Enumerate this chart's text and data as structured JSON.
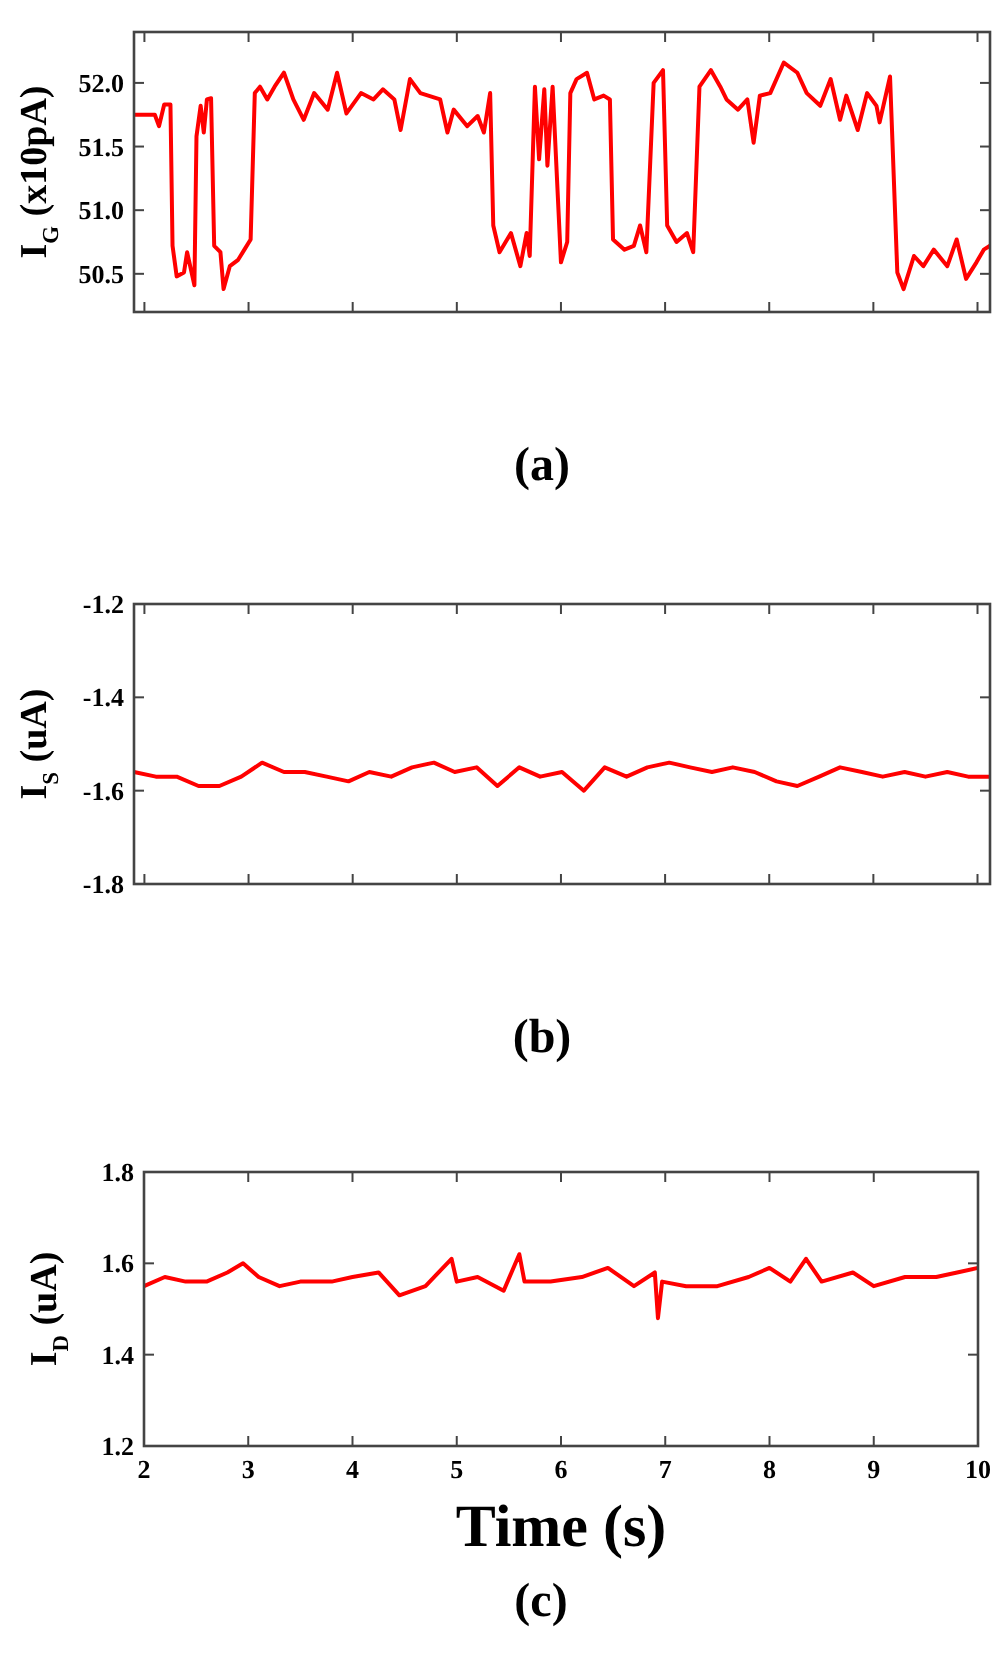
{
  "chart_data": [
    {
      "type": "line",
      "ylabel": "I$_{G}$ (x10pA)",
      "annotations": [
        "(a)"
      ],
      "xlim": [
        1.9,
        10.12
      ],
      "xticks": [
        2,
        3,
        4,
        5,
        6,
        7,
        8,
        9,
        10
      ],
      "ylim": [
        50.2,
        52.4
      ],
      "yticks": [
        {
          "value": 50.5,
          "label": "50.5"
        },
        {
          "value": 51,
          "label": "51.0"
        },
        {
          "value": 51.5,
          "label": "51.5"
        },
        {
          "value": 52,
          "label": "52.0"
        }
      ],
      "tick_labels": "y",
      "marker": "none",
      "line_style": "solid",
      "series": [
        {
          "color": "#ff0000",
          "x": [
            1.9,
            2.1,
            2.14,
            2.19,
            2.25,
            2.27,
            2.31,
            2.38,
            2.41,
            2.48,
            2.5,
            2.54,
            2.57,
            2.6,
            2.64,
            2.67,
            2.73,
            2.76,
            2.82,
            2.9,
            2.96,
            3.02,
            3.06,
            3.11,
            3.18,
            3.25,
            3.34,
            3.43,
            3.53,
            3.63,
            3.76,
            3.85,
            3.94,
            4.08,
            4.2,
            4.29,
            4.4,
            4.46,
            4.55,
            4.65,
            4.84,
            4.91,
            4.97,
            5.1,
            5.2,
            5.26,
            5.32,
            5.35,
            5.41,
            5.52,
            5.61,
            5.67,
            5.7,
            5.75,
            5.79,
            5.84,
            5.87,
            5.92,
            6.0,
            6.06,
            6.09,
            6.15,
            6.25,
            6.32,
            6.41,
            6.47,
            6.5,
            6.61,
            6.7,
            6.76,
            6.82,
            6.89,
            6.98,
            7.02,
            7.11,
            7.21,
            7.27,
            7.33,
            7.44,
            7.53,
            7.59,
            7.7,
            7.79,
            7.85,
            7.91,
            8.01,
            8.14,
            8.27,
            8.36,
            8.49,
            8.59,
            8.68,
            8.74,
            8.85,
            8.94,
            9.03,
            9.06,
            9.16,
            9.23,
            9.29,
            9.39,
            9.48,
            9.58,
            9.71,
            9.8,
            9.89,
            9.99,
            10.06,
            10.12
          ],
          "values": [
            51.75,
            51.75,
            51.66,
            51.83,
            51.83,
            50.72,
            50.48,
            50.51,
            50.67,
            50.41,
            51.58,
            51.82,
            51.61,
            51.87,
            51.88,
            50.72,
            50.67,
            50.38,
            50.56,
            50.61,
            50.69,
            50.77,
            51.92,
            51.97,
            51.87,
            51.97,
            52.08,
            51.87,
            51.71,
            51.92,
            51.79,
            52.08,
            51.76,
            51.92,
            51.87,
            51.95,
            51.87,
            51.63,
            52.03,
            51.92,
            51.87,
            51.61,
            51.79,
            51.66,
            51.74,
            51.61,
            51.92,
            50.88,
            50.67,
            50.82,
            50.56,
            50.82,
            50.64,
            51.97,
            51.4,
            51.95,
            51.35,
            51.97,
            50.59,
            50.75,
            51.92,
            52.03,
            52.08,
            51.87,
            51.9,
            51.87,
            50.77,
            50.69,
            50.72,
            50.88,
            50.67,
            52.0,
            52.1,
            50.88,
            50.75,
            50.82,
            50.67,
            51.97,
            52.1,
            51.97,
            51.87,
            51.79,
            51.87,
            51.53,
            51.9,
            51.92,
            52.16,
            52.08,
            51.92,
            51.82,
            52.03,
            51.71,
            51.9,
            51.63,
            51.92,
            51.82,
            51.69,
            52.05,
            50.51,
            50.38,
            50.64,
            50.56,
            50.69,
            50.56,
            50.77,
            50.46,
            50.59,
            50.69,
            50.72
          ]
        }
      ]
    },
    {
      "type": "line",
      "ylabel": "I$_{S}$ (uA)",
      "annotations": [
        "(b)"
      ],
      "xlim": [
        1.9,
        10.12
      ],
      "xticks": [
        2,
        3,
        4,
        5,
        6,
        7,
        8,
        9,
        10
      ],
      "ylim": [
        -1.8,
        -1.2
      ],
      "yticks": [
        -1.8,
        -1.6,
        -1.4,
        -1.2
      ],
      "tick_labels": "y",
      "marker": "none",
      "line_style": "solid",
      "series": [
        {
          "color": "#ff0000",
          "x": [
            1.9,
            2.11,
            2.31,
            2.52,
            2.72,
            2.93,
            3.13,
            3.34,
            3.54,
            3.75,
            3.96,
            4.16,
            4.37,
            4.57,
            4.78,
            4.98,
            5.19,
            5.39,
            5.6,
            5.8,
            6.01,
            6.22,
            6.42,
            6.63,
            6.83,
            7.04,
            7.24,
            7.45,
            7.65,
            7.86,
            8.07,
            8.27,
            8.48,
            8.68,
            8.89,
            9.09,
            9.3,
            9.5,
            9.71,
            9.91,
            10.12
          ],
          "values": [
            -1.56,
            -1.57,
            -1.57,
            -1.59,
            -1.59,
            -1.57,
            -1.54,
            -1.56,
            -1.56,
            -1.57,
            -1.58,
            -1.56,
            -1.57,
            -1.55,
            -1.54,
            -1.56,
            -1.55,
            -1.59,
            -1.55,
            -1.57,
            -1.56,
            -1.6,
            -1.55,
            -1.57,
            -1.55,
            -1.54,
            -1.55,
            -1.56,
            -1.55,
            -1.56,
            -1.58,
            -1.59,
            -1.57,
            -1.55,
            -1.56,
            -1.57,
            -1.56,
            -1.57,
            -1.56,
            -1.57,
            -1.57
          ]
        }
      ]
    },
    {
      "type": "line",
      "xlabel": "Time (s)",
      "ylabel": "I$_{D}$ (uA)",
      "annotations": [
        "(c)"
      ],
      "xlim": [
        2,
        10
      ],
      "xticks": [
        2,
        3,
        4,
        5,
        6,
        7,
        8,
        9,
        10
      ],
      "ylim": [
        1.2,
        1.8
      ],
      "yticks": [
        1.2,
        1.4,
        1.6,
        1.8
      ],
      "marker": "none",
      "line_style": "solid",
      "series": [
        {
          "color": "#ff0000",
          "x": [
            2.0,
            2.2,
            2.4,
            2.6,
            2.8,
            2.95,
            3.1,
            3.3,
            3.5,
            3.8,
            4.0,
            4.25,
            4.45,
            4.7,
            4.95,
            5.0,
            5.2,
            5.45,
            5.6,
            5.65,
            5.9,
            6.2,
            6.45,
            6.7,
            6.9,
            6.93,
            6.97,
            7.2,
            7.5,
            7.8,
            8.0,
            8.2,
            8.35,
            8.5,
            8.8,
            9.0,
            9.3,
            9.6,
            9.8,
            10.0
          ],
          "values": [
            1.55,
            1.57,
            1.56,
            1.56,
            1.58,
            1.6,
            1.57,
            1.55,
            1.56,
            1.56,
            1.57,
            1.58,
            1.53,
            1.55,
            1.61,
            1.56,
            1.57,
            1.54,
            1.62,
            1.56,
            1.56,
            1.57,
            1.59,
            1.55,
            1.58,
            1.48,
            1.56,
            1.55,
            1.55,
            1.57,
            1.59,
            1.56,
            1.61,
            1.56,
            1.58,
            1.55,
            1.57,
            1.57,
            1.58,
            1.59
          ]
        }
      ]
    }
  ]
}
